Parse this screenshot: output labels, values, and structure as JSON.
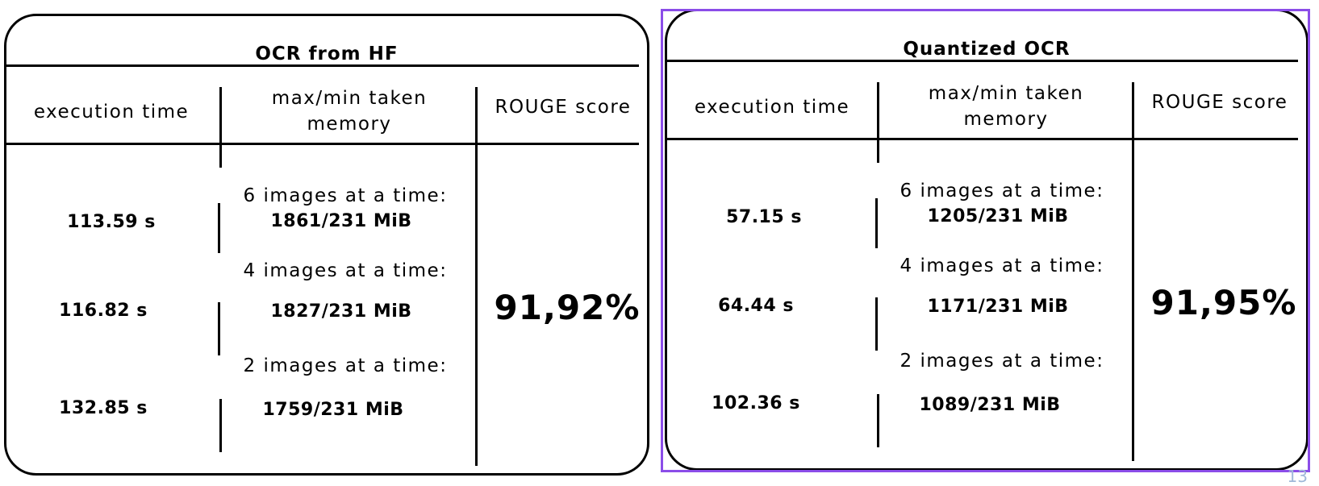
{
  "tables": [
    {
      "title": "OCR from HF",
      "headers": {
        "time": "execution time",
        "memory": "max/min taken memory",
        "score": "ROUGE score"
      },
      "rows": [
        {
          "subheading": "6 images at a time:",
          "time": "113.59 s",
          "memory": "1861/231 MiB"
        },
        {
          "subheading": "4 images at a time:",
          "time": "116.82 s",
          "memory": "1827/231 MiB"
        },
        {
          "subheading": "2 images at a time:",
          "time": "132.85 s",
          "memory": "1759/231 MiB"
        }
      ],
      "score": "91,92%"
    },
    {
      "title": "Quantized OCR",
      "headers": {
        "time": "execution time",
        "memory": "max/min taken memory",
        "score": "ROUGE score"
      },
      "rows": [
        {
          "subheading": "6 images at a time:",
          "time": "57.15 s",
          "memory": "1205/231 MiB"
        },
        {
          "subheading": "4 images at a time:",
          "time": "64.44 s",
          "memory": "1171/231 MiB"
        },
        {
          "subheading": "2 images at a time:",
          "time": "102.36 s",
          "memory": "1089/231 MiB"
        }
      ],
      "score": "91,95%"
    }
  ],
  "page_number": "13"
}
